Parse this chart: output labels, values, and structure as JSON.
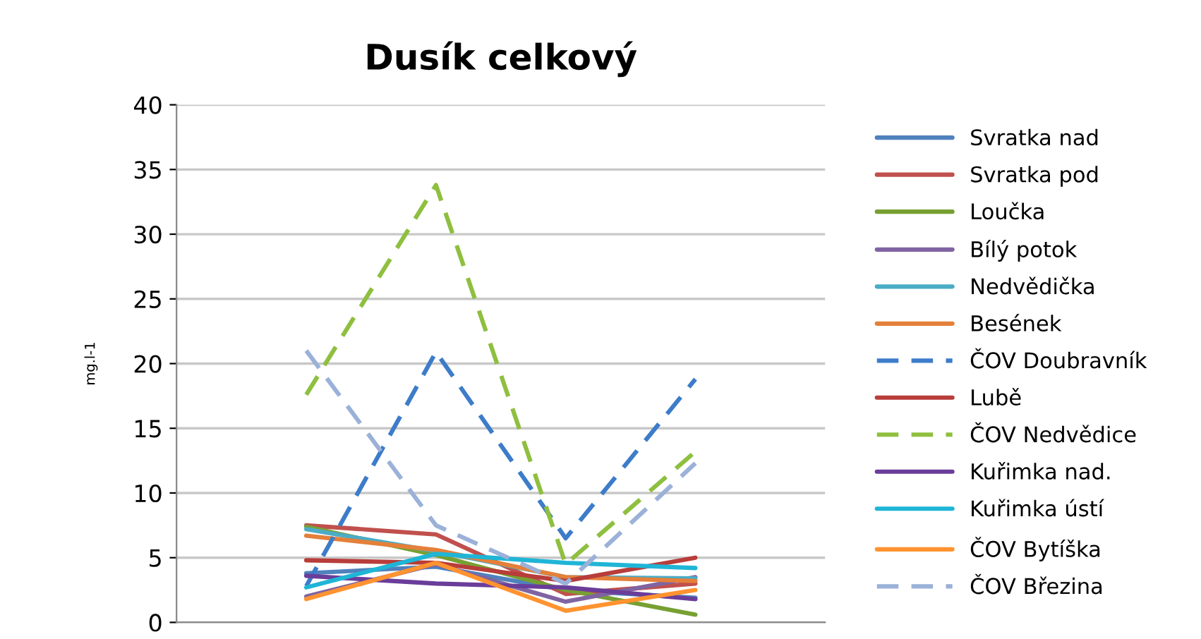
{
  "chart_data": {
    "type": "line",
    "title": "Dusík celkový",
    "ylabel": "mg.l-1",
    "categories": [
      null,
      null,
      null,
      null
    ],
    "ylim": [
      0,
      40
    ],
    "yticks": [
      0,
      5,
      10,
      15,
      20,
      25,
      30,
      35,
      40
    ],
    "grid": "y",
    "legend": "right",
    "marker": "none",
    "series": [
      {
        "name": "Svratka nad",
        "color": "#4f81bd",
        "values": [
          3.8,
          4.3,
          2.5,
          1.9
        ]
      },
      {
        "name": "Svratka pod",
        "color": "#c0504d",
        "values": [
          7.5,
          6.8,
          2.2,
          3.0
        ]
      },
      {
        "name": "Loučka",
        "color": "#77a033",
        "values": [
          7.4,
          5.2,
          2.5,
          0.6
        ]
      },
      {
        "name": "Bílý potok",
        "color": "#8064a2",
        "values": [
          2.0,
          4.5,
          1.6,
          3.5
        ]
      },
      {
        "name": "Nedvědička",
        "color": "#4bacc6",
        "values": [
          7.2,
          5.5,
          3.5,
          3.4
        ]
      },
      {
        "name": "Besének",
        "color": "#e4803a",
        "values": [
          6.7,
          5.6,
          3.5,
          3.2
        ]
      },
      {
        "name": "ČOV Doubravník",
        "color": "#3d7cc9",
        "values": [
          2.8,
          20.9,
          6.5,
          18.8
        ],
        "line_style": "dashed"
      },
      {
        "name": "Lubě",
        "color": "#b83d3a",
        "values": [
          4.8,
          4.6,
          3.2,
          5.0
        ]
      },
      {
        "name": "ČOV Nedvědice",
        "color": "#8fbf3f",
        "values": [
          17.6,
          33.8,
          4.5,
          13.2
        ],
        "line_style": "dashed"
      },
      {
        "name": "Kuřimka nad.",
        "color": "#6a3d9a",
        "values": [
          3.6,
          3.0,
          2.7,
          1.8
        ]
      },
      {
        "name": "Kuřimka ústí",
        "color": "#1fb5d6",
        "values": [
          2.7,
          5.3,
          4.6,
          4.2
        ]
      },
      {
        "name": "ČOV Bytíška",
        "color": "#ff9330",
        "values": [
          1.8,
          4.6,
          0.9,
          2.5
        ]
      },
      {
        "name": "ČOV Březina",
        "color": "#9bb1d8",
        "values": [
          21.0,
          7.5,
          3.0,
          12.3
        ],
        "line_style": "dashed"
      }
    ]
  }
}
